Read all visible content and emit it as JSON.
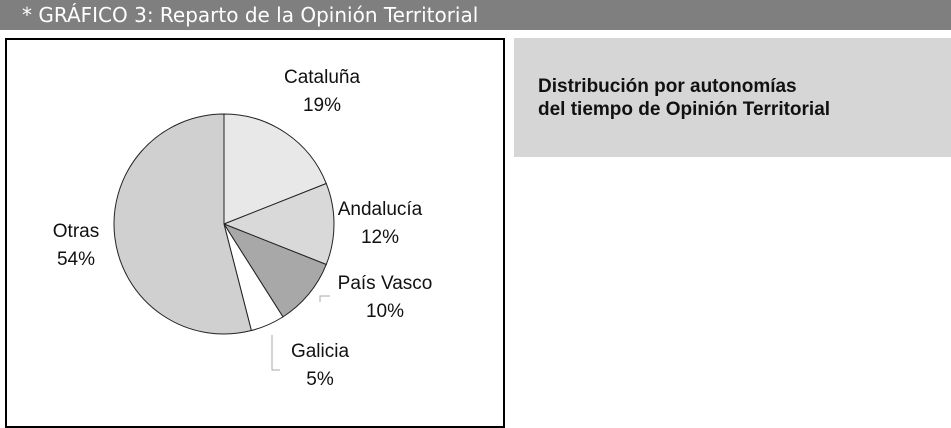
{
  "header": {
    "title": "* GRÁFICO 3: Reparto de la Opinión Territorial"
  },
  "description": [
    "Distribución por autonomías",
    "del tiempo de Opinión Territorial"
  ],
  "chart_data": {
    "type": "pie",
    "categories": [
      "Cataluña",
      "Andalucía",
      "País Vasco",
      "Galicia",
      "Otras"
    ],
    "values": [
      19,
      12,
      10,
      5,
      54
    ],
    "value_labels": [
      "19%",
      "12%",
      "10%",
      "5%",
      "54%"
    ],
    "colors": [
      "#e8e8e8",
      "#d9d9d9",
      "#a8a8a8",
      "#ffffff",
      "#d0d0d0"
    ]
  }
}
